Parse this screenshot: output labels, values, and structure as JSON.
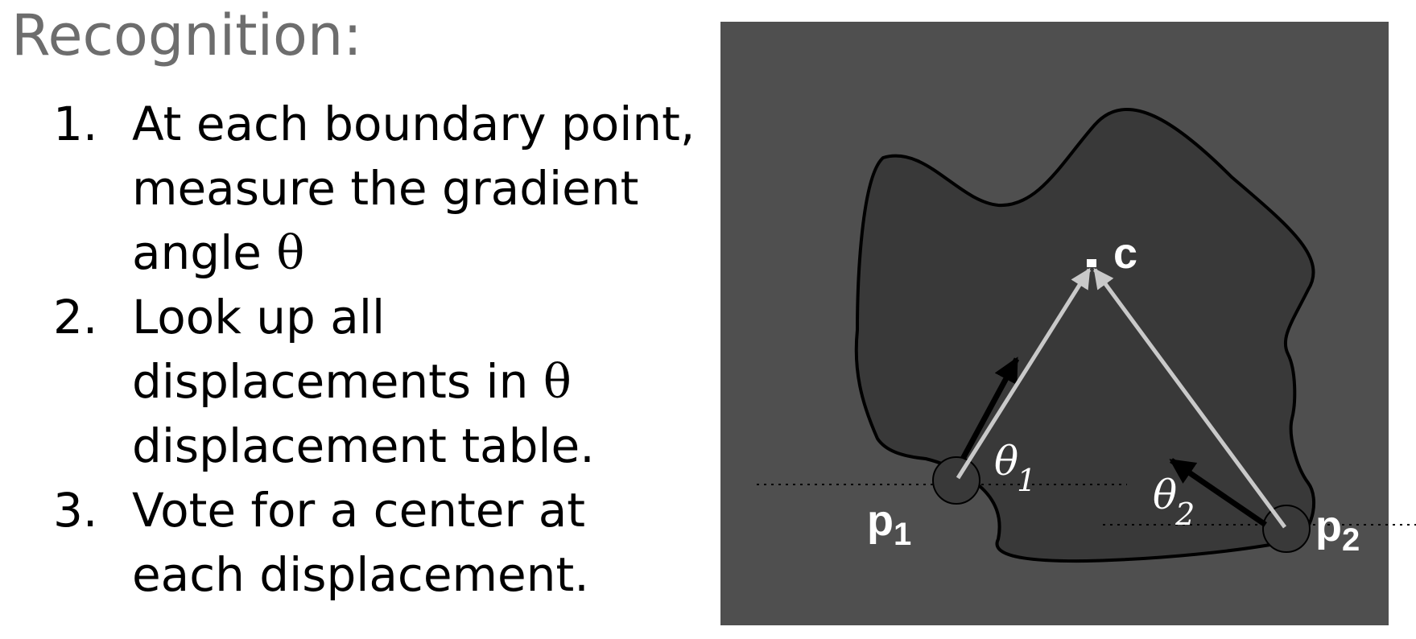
{
  "title": "Recognition:",
  "steps": [
    {
      "number": "1.",
      "lines": [
        "At each boundary point,",
        "measure the gradient",
        "angle "
      ],
      "symbol": "θ"
    },
    {
      "number": "2.",
      "lines": [
        "Look up all",
        "displacements in ",
        "displacement table."
      ],
      "symbol": "θ"
    },
    {
      "number": "3.",
      "lines": [
        "Vote for a center at",
        "each displacement."
      ]
    }
  ],
  "diagram": {
    "center_label": "c",
    "point1": {
      "label": "p",
      "subscript": "1"
    },
    "point2": {
      "label": "p",
      "subscript": "2"
    },
    "angle1": {
      "label": "θ",
      "subscript": "1"
    },
    "angle2": {
      "label": "θ",
      "subscript": "2"
    },
    "colors": {
      "background": "#4f4f4f",
      "shape_fill": "#393939",
      "outline": "#000000",
      "displacement_arrow": "#c9c9c9",
      "gradient_arrow": "#000000",
      "label": "#ffffff"
    }
  }
}
